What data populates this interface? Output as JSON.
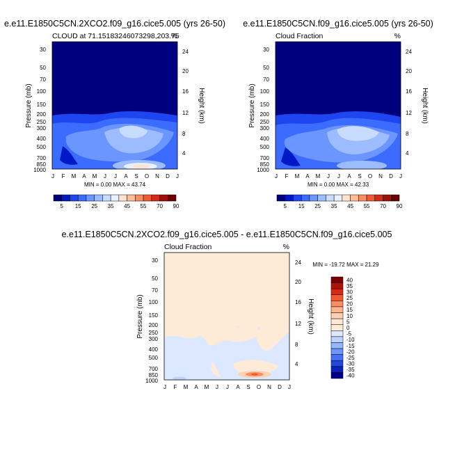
{
  "chart_data": [
    {
      "type": "heatmap",
      "title": "e.e11.E1850C5CN.2XCO2.f09_g16.cice5.005 (yrs 26-50)",
      "subtitle_left": "CLOUD at 71.15183246073298,203.75",
      "subtitle_right": "%",
      "ylabel": "Pressure (mb)",
      "ylabel_right": "Height (km)",
      "x_ticks": [
        "J",
        "F",
        "M",
        "A",
        "M",
        "J",
        "J",
        "A",
        "S",
        "O",
        "N",
        "D",
        "J"
      ],
      "y_ticks": [
        "30",
        "50",
        "70",
        "100",
        "150",
        "200",
        "250",
        "300",
        "400",
        "500",
        "700",
        "850",
        "1000"
      ],
      "y_ticks_right": [
        "24",
        "20",
        "16",
        "12",
        "8",
        "4"
      ],
      "stats": "MIN =   0.00 MAX =  43.74",
      "min": 0.0,
      "max": 43.74
    },
    {
      "type": "heatmap",
      "title": "e.e11.E1850C5CN.f09_g16.cice5.005 (yrs 26-50)",
      "subtitle_left": "Cloud Fraction",
      "subtitle_right": "%",
      "ylabel": "Pressure (mb)",
      "ylabel_right": "Height (km)",
      "x_ticks": [
        "J",
        "F",
        "M",
        "A",
        "M",
        "J",
        "J",
        "A",
        "S",
        "O",
        "N",
        "D",
        "J"
      ],
      "y_ticks": [
        "30",
        "50",
        "70",
        "100",
        "150",
        "200",
        "250",
        "300",
        "400",
        "500",
        "700",
        "850",
        "1000"
      ],
      "y_ticks_right": [
        "24",
        "20",
        "16",
        "12",
        "8",
        "4"
      ],
      "stats": "MIN =   0.00 MAX =  42.33",
      "min": 0.0,
      "max": 42.33
    },
    {
      "type": "heatmap",
      "title": "e.e11.E1850C5CN.2XCO2.f09_g16.cice5.005 - e.e11.E1850C5CN.f09_g16.cice5.005",
      "subtitle_left": "Cloud Fraction",
      "subtitle_right": "%",
      "ylabel": "Pressure (mb)",
      "ylabel_right": "Height (km)",
      "x_ticks": [
        "J",
        "F",
        "M",
        "A",
        "M",
        "J",
        "J",
        "A",
        "S",
        "O",
        "N",
        "D",
        "J"
      ],
      "y_ticks": [
        "30",
        "50",
        "70",
        "100",
        "150",
        "200",
        "250",
        "300",
        "400",
        "500",
        "700",
        "850",
        "1000"
      ],
      "y_ticks_right": [
        "24",
        "20",
        "16",
        "12",
        "8",
        "4"
      ],
      "stats": "MIN = -19.72 MAX =  21.29",
      "min": -19.72,
      "max": 21.29
    }
  ],
  "colorbar_top": {
    "labels": [
      "5",
      "15",
      "25",
      "35",
      "45",
      "55",
      "70",
      "90"
    ],
    "colors": [
      "#00007f",
      "#0019c6",
      "#1e46f0",
      "#3c6cff",
      "#6c96ff",
      "#9dbcff",
      "#c8dcff",
      "#e6f0ff",
      "#fde4d0",
      "#fdbc97",
      "#f98c60",
      "#ef5a32",
      "#d42a16",
      "#a0100a",
      "#6a0000"
    ]
  },
  "colorbar_diff": {
    "labels": [
      "40",
      "35",
      "30",
      "25",
      "20",
      "15",
      "10",
      "5",
      "0",
      "-5",
      "-10",
      "-15",
      "-20",
      "-25",
      "-30",
      "-35",
      "-40"
    ],
    "colors": [
      "#7a0000",
      "#b01208",
      "#d42a16",
      "#ef5a32",
      "#f98c60",
      "#fdb48c",
      "#fdd2b4",
      "#fde8d4",
      "#fdebd8",
      "#dbe8ff",
      "#bcd2ff",
      "#96b6ff",
      "#6e94ff",
      "#4670f6",
      "#2246de",
      "#0c22b8",
      "#00008a"
    ]
  }
}
